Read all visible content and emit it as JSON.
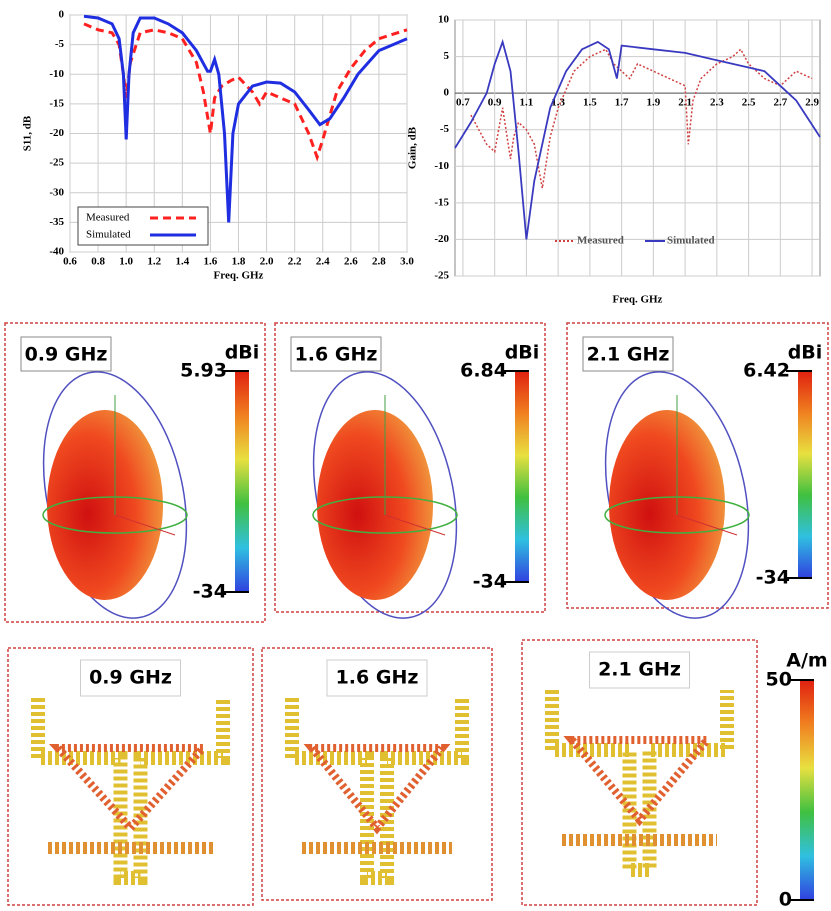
{
  "chart_data": [
    {
      "type": "line",
      "ylabel": "S11, dB",
      "xlabel": "Freq. GHz",
      "xlim": [
        0.6,
        3.0
      ],
      "xticks": [
        {
          "value": 0.6,
          "label": "0.6"
        },
        0.8,
        {
          "value": 1.0,
          "label": "1.0"
        },
        1.2,
        1.4,
        1.6,
        1.8,
        {
          "value": 2.0,
          "label": "2.0"
        },
        2.2,
        2.4,
        2.6,
        2.8,
        {
          "value": 3.0,
          "label": "3.0"
        }
      ],
      "ylim": [
        -40,
        0
      ],
      "yticks": [
        0,
        -5,
        -10,
        -15,
        -20,
        -25,
        -30,
        -35,
        -40
      ],
      "grid": true,
      "legend": "lower-left",
      "series": [
        {
          "name": "Measured",
          "color": "#ff2020",
          "dash": true,
          "x": [
            0.7,
            0.8,
            0.9,
            0.95,
            0.98,
            1.0,
            1.03,
            1.1,
            1.2,
            1.3,
            1.4,
            1.5,
            1.55,
            1.6,
            1.63,
            1.68,
            1.75,
            1.8,
            1.9,
            1.95,
            2.0,
            2.1,
            2.2,
            2.3,
            2.36,
            2.4,
            2.5,
            2.6,
            2.7,
            2.8,
            3.0
          ],
          "values": [
            -1.5,
            -2.5,
            -3,
            -5,
            -10,
            -14,
            -8,
            -3,
            -2.5,
            -3,
            -4,
            -8,
            -13,
            -20,
            -14,
            -12,
            -11,
            -10.5,
            -13,
            -15,
            -13,
            -14,
            -15,
            -20,
            -24,
            -21,
            -13,
            -9,
            -6,
            -4,
            -2.5
          ]
        },
        {
          "name": "Simulated",
          "color": "#1f2ee0",
          "dash": false,
          "x": [
            0.7,
            0.8,
            0.9,
            0.95,
            0.98,
            1.0,
            1.02,
            1.05,
            1.1,
            1.2,
            1.3,
            1.4,
            1.5,
            1.58,
            1.6,
            1.63,
            1.66,
            1.7,
            1.73,
            1.76,
            1.8,
            1.9,
            2.0,
            2.1,
            2.2,
            2.3,
            2.38,
            2.45,
            2.55,
            2.65,
            2.8,
            3.0
          ],
          "values": [
            -0.2,
            -0.5,
            -1.5,
            -4,
            -10,
            -21,
            -10,
            -3,
            -0.5,
            -0.5,
            -1.5,
            -3,
            -6,
            -9.5,
            -9.5,
            -7.5,
            -10,
            -20,
            -35,
            -20,
            -15,
            -12,
            -11.3,
            -11.5,
            -13,
            -16,
            -18.5,
            -17.5,
            -14,
            -10,
            -6,
            -4
          ]
        }
      ]
    },
    {
      "type": "line",
      "ylabel": "Gain, dB",
      "xlabel": "Freq. GHz",
      "xlim": [
        0.65,
        2.95
      ],
      "xticks": [
        0.7,
        0.9,
        1.1,
        1.3,
        1.5,
        1.7,
        1.9,
        2.1,
        2.3,
        2.5,
        2.7,
        2.9
      ],
      "ylim": [
        -25,
        10
      ],
      "yticks": [
        10,
        5,
        0,
        -5,
        -10,
        -15,
        -20,
        -25
      ],
      "grid": true,
      "legend": "lower-center",
      "series": [
        {
          "name": "Measured",
          "color": "#d04040",
          "dash": true,
          "x": [
            0.75,
            0.8,
            0.85,
            0.9,
            0.95,
            1.0,
            1.02,
            1.05,
            1.1,
            1.15,
            1.2,
            1.25,
            1.3,
            1.4,
            1.5,
            1.6,
            1.65,
            1.7,
            1.75,
            1.8,
            1.9,
            2.0,
            2.1,
            2.12,
            2.15,
            2.2,
            2.3,
            2.4,
            2.45,
            2.5,
            2.6,
            2.7,
            2.8,
            2.9
          ],
          "values": [
            -3,
            -5,
            -7,
            -8,
            -2,
            -9,
            -6,
            -4,
            -5,
            -7,
            -13,
            -6,
            -2,
            3,
            5,
            6,
            4,
            3,
            2,
            4,
            3,
            2,
            1,
            -7,
            -1,
            2,
            4,
            5,
            6,
            4,
            2,
            1,
            3,
            2
          ]
        },
        {
          "name": "Simulated",
          "color": "#3a3ac0",
          "dash": false,
          "x": [
            0.65,
            0.75,
            0.85,
            0.9,
            0.95,
            1.0,
            1.05,
            1.1,
            1.15,
            1.25,
            1.35,
            1.45,
            1.55,
            1.62,
            1.67,
            1.7,
            1.9,
            2.1,
            2.3,
            2.5,
            2.6,
            2.7,
            2.8,
            2.95
          ],
          "values": [
            -7.5,
            -4,
            0,
            4,
            7,
            3,
            -8,
            -20,
            -12,
            -2,
            3,
            6,
            7,
            6,
            2,
            6.5,
            6,
            5.5,
            4.5,
            3.5,
            3,
            1,
            -1,
            -6
          ]
        }
      ]
    }
  ],
  "radiation_patterns": [
    {
      "label": "0.9 GHz",
      "colorbar": {
        "unit": "dBi",
        "max": 5.93,
        "min": -34
      }
    },
    {
      "label": "1.6 GHz",
      "colorbar": {
        "unit": "dBi",
        "max": 6.84,
        "min": -34
      }
    },
    {
      "label": "2.1 GHz",
      "colorbar": {
        "unit": "dBi",
        "max": 6.42,
        "min": -34
      }
    }
  ],
  "current_distributions": {
    "panels": [
      {
        "label": "0.9 GHz"
      },
      {
        "label": "1.6 GHz"
      },
      {
        "label": "2.1 GHz"
      }
    ],
    "colorbar": {
      "unit": "A/m",
      "max": 50,
      "min": 0
    }
  }
}
